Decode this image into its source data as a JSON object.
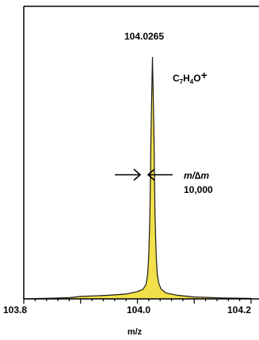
{
  "chart_data": {
    "type": "line",
    "title": "",
    "xlabel": "m/z",
    "ylabel": "",
    "xlim": [
      103.8,
      104.2
    ],
    "ylim": [
      0,
      100
    ],
    "x_ticks": [
      "103.8",
      "104.0",
      "104.2"
    ],
    "grid": false,
    "legend": "none",
    "fill_color": "#f2e04a",
    "line_color": "#1a1a1a",
    "series": [
      {
        "x": [
          103.8,
          103.85,
          103.88,
          103.9,
          103.95,
          103.98,
          104.0,
          104.01,
          104.015,
          104.018,
          104.02,
          104.022,
          104.024,
          104.0265,
          104.029,
          104.031,
          104.033,
          104.035,
          104.038,
          104.042,
          104.05,
          104.07,
          104.1,
          104.15,
          104.2
        ],
        "y": [
          0.0,
          0.3,
          0.5,
          1.0,
          1.5,
          2.0,
          3.0,
          4.0,
          6.0,
          10.0,
          18.0,
          35.0,
          70.0,
          100.0,
          70.0,
          35.0,
          18.0,
          10.0,
          6.0,
          4.0,
          2.5,
          1.5,
          0.8,
          0.4,
          0.2
        ]
      }
    ],
    "annotations": {
      "peak_mz": "104.0265",
      "formula": "C7H4O+",
      "resolution_label": "m/∆m",
      "resolution_value": "10,000"
    }
  }
}
